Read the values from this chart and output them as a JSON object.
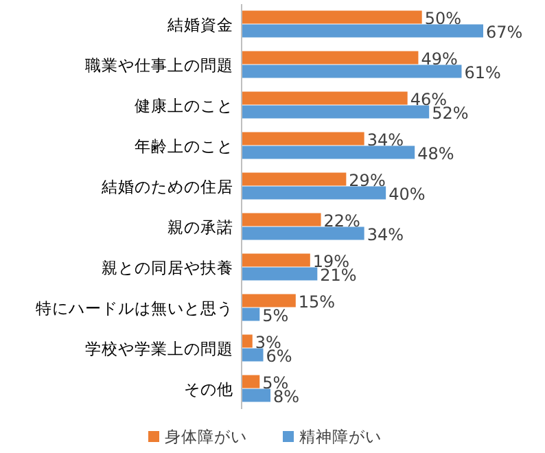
{
  "chart_data": {
    "type": "bar",
    "orientation": "horizontal",
    "legend": "bottom",
    "categories": [
      "結婚資金",
      "職業や仕事上の問題",
      "健康上のこと",
      "年齢上のこと",
      "結婚のための住居",
      "親の承諾",
      "親との同居や扶養",
      "特にハードルは無いと思う",
      "学校や学業上の問題",
      "その他"
    ],
    "series": [
      {
        "name": "身体障がい",
        "color": "#ed7d31",
        "values": [
          50,
          49,
          46,
          34,
          29,
          22,
          19,
          15,
          3,
          5
        ],
        "value_labels": [
          "50%",
          "49%",
          "46%",
          "34%",
          "29%",
          "22%",
          "19%",
          "15%",
          "3%",
          "5%"
        ]
      },
      {
        "name": "精神障がい",
        "color": "#5b9bd5",
        "values": [
          67,
          61,
          52,
          48,
          40,
          34,
          21,
          5,
          6,
          8
        ],
        "value_labels": [
          "67%",
          "61%",
          "52%",
          "48%",
          "40%",
          "34%",
          "21%",
          "5%",
          "6%",
          "8%"
        ]
      }
    ]
  }
}
